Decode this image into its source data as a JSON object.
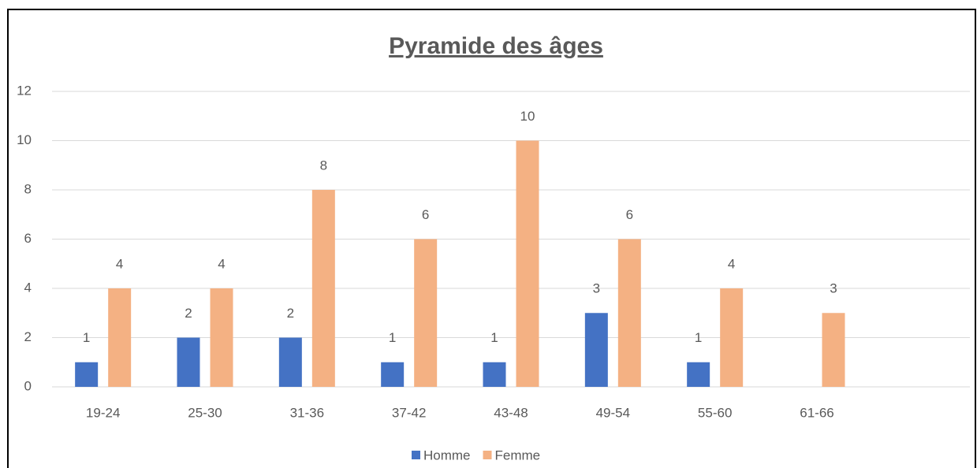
{
  "chart_data": {
    "type": "bar",
    "title": "Pyramide des âges",
    "categories": [
      "19-24",
      "25-30",
      "31-36",
      "37-42",
      "43-48",
      "49-54",
      "55-60",
      "61-66",
      null
    ],
    "series": [
      {
        "name": "Homme",
        "color": "#4472c4",
        "values": [
          1,
          2,
          2,
          1,
          1,
          3,
          1,
          null,
          null
        ]
      },
      {
        "name": "Femme",
        "color": "#f4b183",
        "values": [
          4,
          4,
          8,
          6,
          10,
          6,
          4,
          3,
          null
        ]
      }
    ],
    "ylim": [
      0,
      12
    ],
    "yticks": [
      0,
      2,
      4,
      6,
      8,
      10,
      12
    ],
    "grid": true,
    "legend": "bottom"
  }
}
